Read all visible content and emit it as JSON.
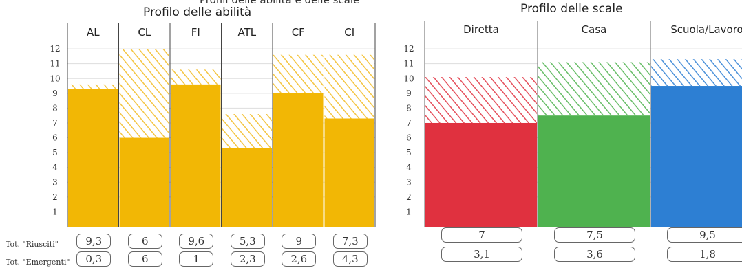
{
  "header_fragment": "Profili delle abilità e delle scale",
  "charts": [
    {
      "title": "Profilo delle abilità",
      "row_labels": [
        "Tot. \"Riusciti\"",
        "Tot. \"Emergenti\""
      ],
      "colors": {
        "solid": "#f2b705",
        "hatch": "#f4c542",
        "grid": "#dddddd",
        "divider": "#444444"
      }
    },
    {
      "title": "Profilo delle scale",
      "colors": {
        "grid": "#dddddd",
        "divider": "#666666"
      }
    }
  ],
  "chart_data": [
    {
      "type": "bar",
      "title": "Profilo delle abilità",
      "categories": [
        "AL",
        "CL",
        "FI",
        "ATL",
        "CF",
        "CI"
      ],
      "series": [
        {
          "name": "Tot. \"Riusciti\"",
          "values": [
            9.3,
            6,
            9.6,
            5.3,
            9,
            7.3
          ],
          "labels": [
            "9,3",
            "6",
            "9,6",
            "5,3",
            "9",
            "7,3"
          ]
        },
        {
          "name": "Tot. \"Emergenti\"",
          "values": [
            0.3,
            6,
            1,
            2.3,
            2.6,
            4.3
          ],
          "labels": [
            "0,3",
            "6",
            "1",
            "2,3",
            "2,6",
            "4,3"
          ]
        }
      ],
      "yticks": [
        1,
        2,
        3,
        4,
        5,
        6,
        7,
        8,
        9,
        10,
        11,
        12
      ],
      "ylim": [
        0,
        12.7
      ],
      "stacked": true,
      "grid": true
    },
    {
      "type": "bar",
      "title": "Profilo delle scale",
      "categories": [
        "Diretta",
        "Casa",
        "Scuola/Lavoro"
      ],
      "category_colors": [
        "#e0313f",
        "#4fb24f",
        "#2d7fd3"
      ],
      "series": [
        {
          "name": "Tot. \"Riusciti\"",
          "values": [
            7,
            7.5,
            9.5
          ],
          "labels": [
            "7",
            "7,5",
            "9,5"
          ]
        },
        {
          "name": "Tot. \"Emergenti\"",
          "values": [
            3.1,
            3.6,
            1.8
          ],
          "labels": [
            "3,1",
            "3,6",
            "1,8"
          ]
        }
      ],
      "yticks": [
        1,
        2,
        3,
        4,
        5,
        6,
        7,
        8,
        9,
        10,
        11,
        12
      ],
      "ylim": [
        0,
        12.7
      ],
      "stacked": true,
      "grid": true
    }
  ]
}
